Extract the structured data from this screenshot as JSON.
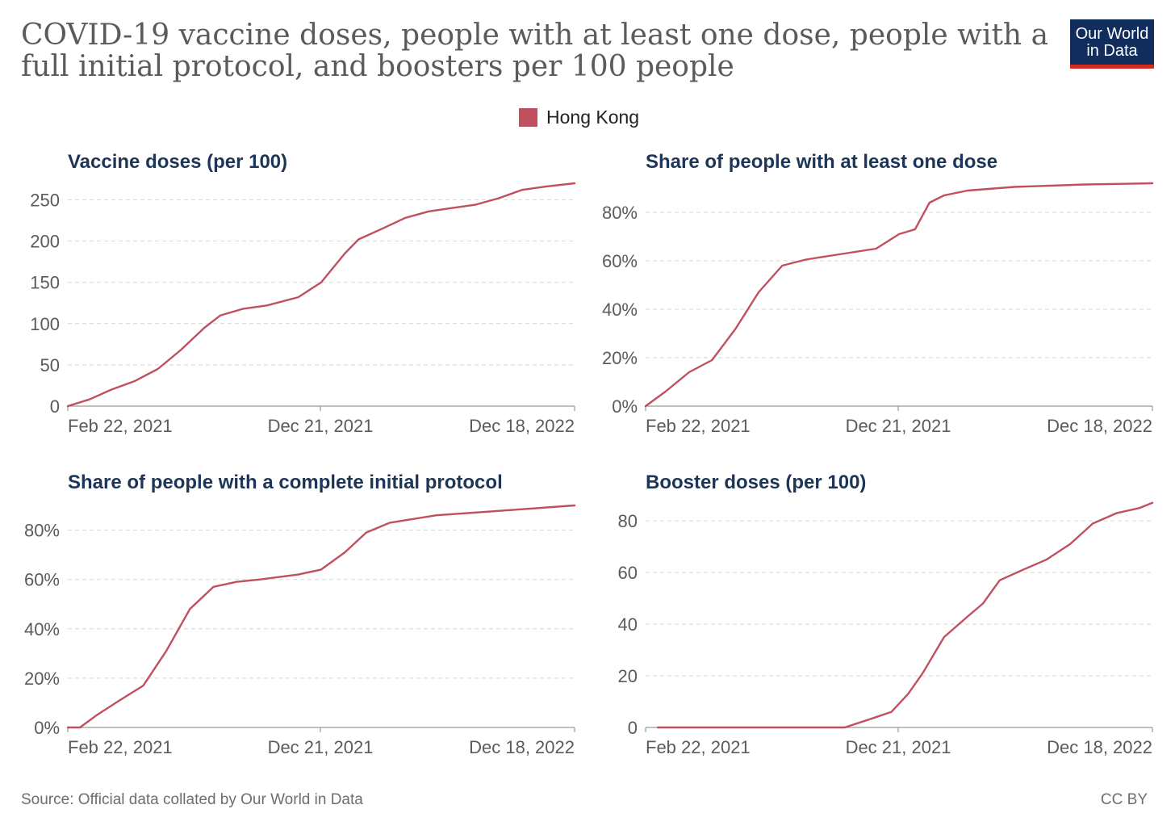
{
  "title": "COVID-19 vaccine doses, people with at least one dose, people with a full initial protocol, and boosters per 100 people",
  "logo": {
    "line1": "Our World",
    "line2": "in Data"
  },
  "legend": [
    {
      "name": "Hong Kong",
      "color": "#c0505f"
    }
  ],
  "source": "Source: Official data collated by Our World in Data",
  "license": "CC BY",
  "chart_data": [
    {
      "type": "line",
      "title": "Vaccine doses (per 100)",
      "x_ticks": [
        "Feb 22, 2021",
        "Dec 21, 2021",
        "Dec 18, 2022"
      ],
      "x_range": [
        "2021-02-22",
        "2022-12-18"
      ],
      "y_ticks": [
        "0",
        "50",
        "100",
        "150",
        "200",
        "250"
      ],
      "y_tick_values": [
        0,
        50,
        100,
        150,
        200,
        250
      ],
      "ylim": [
        0,
        270
      ],
      "grid": true,
      "series": [
        {
          "name": "Hong Kong",
          "color": "#c0505f",
          "x": [
            "2021-02-22",
            "2021-03-22",
            "2021-04-20",
            "2021-05-20",
            "2021-06-20",
            "2021-07-20",
            "2021-08-20",
            "2021-09-10",
            "2021-10-10",
            "2021-11-10",
            "2021-12-21",
            "2022-01-20",
            "2022-02-20",
            "2022-03-10",
            "2022-04-10",
            "2022-05-10",
            "2022-06-10",
            "2022-07-10",
            "2022-08-10",
            "2022-09-10",
            "2022-10-10",
            "2022-11-10",
            "2022-12-18"
          ],
          "values": [
            0,
            8,
            20,
            30,
            45,
            68,
            95,
            110,
            118,
            122,
            132,
            150,
            185,
            202,
            215,
            228,
            236,
            240,
            244,
            252,
            262,
            266,
            270
          ]
        }
      ]
    },
    {
      "type": "line",
      "title": "Share of people with at least one dose",
      "x_ticks": [
        "Feb 22, 2021",
        "Dec 21, 2021",
        "Dec 18, 2022"
      ],
      "x_range": [
        "2021-02-22",
        "2022-12-18"
      ],
      "y_ticks": [
        "0%",
        "20%",
        "40%",
        "60%",
        "80%"
      ],
      "y_tick_values": [
        0,
        20,
        40,
        60,
        80
      ],
      "ylim": [
        0,
        92
      ],
      "grid": true,
      "series": [
        {
          "name": "Hong Kong",
          "color": "#c0505f",
          "x": [
            "2021-02-22",
            "2021-03-20",
            "2021-04-20",
            "2021-05-20",
            "2021-06-20",
            "2021-07-20",
            "2021-08-20",
            "2021-09-20",
            "2021-10-20",
            "2021-11-20",
            "2021-12-21",
            "2022-01-20",
            "2022-02-10",
            "2022-03-01",
            "2022-03-20",
            "2022-04-20",
            "2022-06-20",
            "2022-09-20",
            "2022-12-18"
          ],
          "values": [
            0,
            6,
            14,
            19,
            32,
            47,
            58,
            60.5,
            62,
            63.5,
            65,
            71,
            73,
            84,
            87,
            89,
            90.5,
            91.5,
            92
          ]
        }
      ]
    },
    {
      "type": "line",
      "title": "Share of people with a complete initial protocol",
      "x_ticks": [
        "Feb 22, 2021",
        "Dec 21, 2021",
        "Dec 18, 2022"
      ],
      "x_range": [
        "2021-02-22",
        "2022-12-18"
      ],
      "y_ticks": [
        "0%",
        "20%",
        "40%",
        "60%",
        "80%"
      ],
      "y_tick_values": [
        0,
        20,
        40,
        60,
        80
      ],
      "ylim": [
        0,
        90
      ],
      "grid": true,
      "series": [
        {
          "name": "Hong Kong",
          "color": "#c0505f",
          "x": [
            "2021-02-22",
            "2021-03-10",
            "2021-04-01",
            "2021-05-01",
            "2021-06-01",
            "2021-07-01",
            "2021-08-01",
            "2021-09-01",
            "2021-10-01",
            "2021-11-01",
            "2021-12-21",
            "2022-01-20",
            "2022-02-20",
            "2022-03-20",
            "2022-04-20",
            "2022-06-20",
            "2022-09-20",
            "2022-12-18"
          ],
          "values": [
            0,
            0,
            5,
            11,
            17,
            31,
            48,
            57,
            59,
            60,
            62,
            64,
            71,
            79,
            83,
            86,
            88,
            90
          ]
        }
      ]
    },
    {
      "type": "line",
      "title": "Booster doses (per 100)",
      "x_ticks": [
        "Feb 22, 2021",
        "Dec 21, 2021",
        "Dec 18, 2022"
      ],
      "x_range": [
        "2021-02-22",
        "2022-12-18"
      ],
      "y_ticks": [
        "0",
        "20",
        "40",
        "60",
        "80"
      ],
      "y_tick_values": [
        0,
        20,
        40,
        60,
        80
      ],
      "ylim": [
        0,
        86
      ],
      "grid": true,
      "series": [
        {
          "name": "Hong Kong",
          "color": "#c0505f",
          "x": [
            "2021-03-10",
            "2021-11-10",
            "2021-12-21",
            "2022-01-10",
            "2022-02-01",
            "2022-02-20",
            "2022-03-20",
            "2022-04-20",
            "2022-05-10",
            "2022-06-01",
            "2022-07-01",
            "2022-08-01",
            "2022-09-01",
            "2022-10-01",
            "2022-11-01",
            "2022-12-01",
            "2022-12-18"
          ],
          "values": [
            0,
            0,
            4,
            6,
            13,
            21,
            35,
            43,
            48,
            57,
            61,
            65,
            71,
            79,
            83,
            85,
            87
          ]
        }
      ]
    }
  ]
}
